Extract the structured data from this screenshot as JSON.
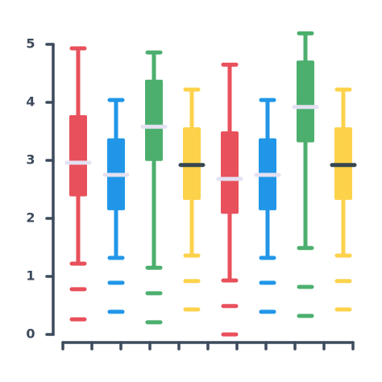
{
  "chart_data": {
    "type": "box",
    "ylim": [
      0,
      5
    ],
    "yticks": [
      0,
      1,
      2,
      3,
      4,
      5
    ],
    "boxes": [
      {
        "color": "#e8505b",
        "median_color": "#e3e1f2",
        "whisker_low": 1.22,
        "q1": 2.38,
        "median": 2.96,
        "q3": 3.78,
        "whisker_high": 4.93,
        "outliers": [
          0.78,
          0.26
        ]
      },
      {
        "color": "#2196e8",
        "median_color": "#e3e1f2",
        "whisker_low": 1.32,
        "q1": 2.14,
        "median": 2.75,
        "q3": 3.38,
        "whisker_high": 4.04,
        "outliers": [
          0.89,
          0.39
        ]
      },
      {
        "color": "#4caf6e",
        "median_color": "#e3e1f2",
        "whisker_low": 1.15,
        "q1": 2.99,
        "median": 3.58,
        "q3": 4.39,
        "whisker_high": 4.86,
        "outliers": [
          0.71,
          0.21
        ]
      },
      {
        "color": "#fdd24b",
        "median_color": "#37474f",
        "whisker_low": 1.36,
        "q1": 2.32,
        "median": 2.92,
        "q3": 3.57,
        "whisker_high": 4.22,
        "outliers": [
          0.92,
          0.43
        ]
      },
      {
        "color": "#e8505b",
        "median_color": "#e3e1f2",
        "whisker_low": 0.93,
        "q1": 2.08,
        "median": 2.68,
        "q3": 3.5,
        "whisker_high": 4.65,
        "outliers": [
          0.49,
          0.0
        ]
      },
      {
        "color": "#2196e8",
        "median_color": "#e3e1f2",
        "whisker_low": 1.32,
        "q1": 2.14,
        "median": 2.75,
        "q3": 3.38,
        "whisker_high": 4.04,
        "outliers": [
          0.89,
          0.39
        ]
      },
      {
        "color": "#4caf6e",
        "median_color": "#e3e1f2",
        "whisker_low": 1.49,
        "q1": 3.31,
        "median": 3.92,
        "q3": 4.72,
        "whisker_high": 5.19,
        "outliers": [
          0.82,
          0.32
        ]
      },
      {
        "color": "#fdd24b",
        "median_color": "#37474f",
        "whisker_low": 1.36,
        "q1": 2.32,
        "median": 2.92,
        "q3": 3.57,
        "whisker_high": 4.22,
        "outliers": [
          0.92,
          0.43
        ]
      }
    ]
  }
}
